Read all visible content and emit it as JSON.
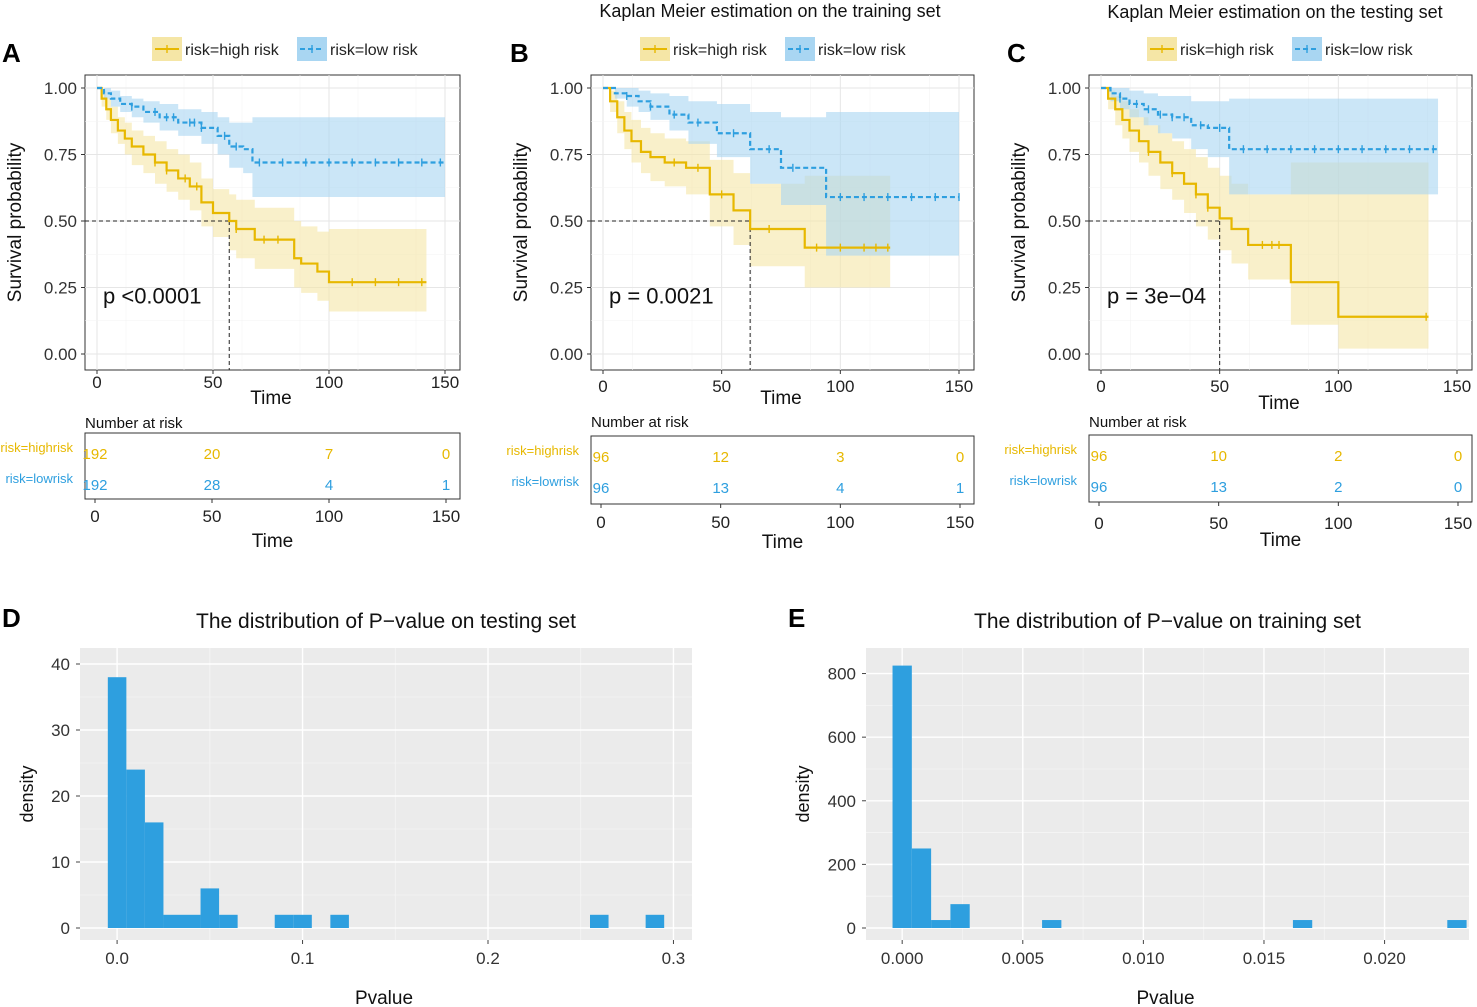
{
  "colors": {
    "high": "#E7B800",
    "low": "#2E9FDF",
    "high_fill": "#F5E6A6",
    "low_fill": "#A9D6F2",
    "grid": "#E6E6E6",
    "panel_bg": "#EBEBEB",
    "bar": "#2E9FDF"
  },
  "panels": {
    "A": {
      "letter": "A",
      "title": ""
    },
    "B": {
      "letter": "B",
      "title": "Kaplan Meier estimation on the training set"
    },
    "C": {
      "letter": "C",
      "title": "Kaplan Meier estimation on the testing set"
    },
    "D": {
      "letter": "D"
    },
    "E": {
      "letter": "E"
    }
  },
  "chart_data": [
    {
      "id": "A",
      "type": "line",
      "title": "",
      "legend": [
        "risk=high risk",
        "risk=low risk"
      ],
      "xlabel": "Time",
      "ylabel": "Survival probability",
      "xlim": [
        0,
        150
      ],
      "ylim": [
        0,
        1
      ],
      "xticks": [
        "0",
        "50",
        "100",
        "150"
      ],
      "yticks": [
        "0.00",
        "0.25",
        "0.50",
        "0.75",
        "1.00"
      ],
      "pvalue": "p <0.0001",
      "median": 57,
      "series": [
        {
          "name": "risk=high risk",
          "x": [
            0,
            2,
            4,
            6,
            9,
            12,
            15,
            20,
            25,
            30,
            35,
            40,
            45,
            50,
            57,
            60,
            68,
            85,
            88,
            95,
            100,
            142
          ],
          "y": [
            1.0,
            0.96,
            0.92,
            0.88,
            0.84,
            0.81,
            0.78,
            0.75,
            0.72,
            0.69,
            0.66,
            0.63,
            0.57,
            0.53,
            0.5,
            0.47,
            0.43,
            0.36,
            0.34,
            0.31,
            0.27,
            0.27
          ],
          "lower": [
            1.0,
            0.93,
            0.88,
            0.83,
            0.79,
            0.75,
            0.71,
            0.68,
            0.64,
            0.61,
            0.58,
            0.54,
            0.48,
            0.44,
            0.39,
            0.36,
            0.32,
            0.25,
            0.23,
            0.2,
            0.16,
            0.16
          ],
          "upper": [
            1.0,
            0.99,
            0.96,
            0.93,
            0.89,
            0.87,
            0.84,
            0.82,
            0.8,
            0.77,
            0.75,
            0.72,
            0.66,
            0.62,
            0.6,
            0.58,
            0.55,
            0.5,
            0.48,
            0.46,
            0.47,
            0.47
          ],
          "censor": [
            25,
            30,
            38,
            43,
            60,
            72,
            78,
            110,
            120,
            130,
            140
          ]
        },
        {
          "name": "risk=low risk",
          "x": [
            0,
            3,
            6,
            10,
            15,
            20,
            27,
            35,
            45,
            52,
            57,
            63,
            67,
            150
          ],
          "y": [
            1.0,
            0.98,
            0.96,
            0.94,
            0.93,
            0.91,
            0.89,
            0.87,
            0.85,
            0.82,
            0.78,
            0.77,
            0.72,
            0.72
          ],
          "lower": [
            1.0,
            0.96,
            0.93,
            0.91,
            0.89,
            0.87,
            0.84,
            0.82,
            0.79,
            0.75,
            0.7,
            0.68,
            0.59,
            0.59
          ],
          "upper": [
            1.0,
            1.0,
            0.99,
            0.97,
            0.96,
            0.95,
            0.94,
            0.92,
            0.91,
            0.89,
            0.87,
            0.87,
            0.89,
            0.89
          ],
          "censor": [
            15,
            25,
            30,
            33,
            40,
            42,
            45,
            55,
            60,
            70,
            80,
            90,
            100,
            110,
            120,
            130,
            140,
            148
          ]
        }
      ],
      "risk_table": {
        "title": "Number at risk",
        "rows": [
          {
            "label": "risk=highrisk",
            "values": [
              "192",
              "20",
              "7",
              "0"
            ]
          },
          {
            "label": "risk=lowrisk",
            "values": [
              "192",
              "28",
              "4",
              "1"
            ]
          }
        ]
      }
    },
    {
      "id": "B",
      "type": "line",
      "title": "Kaplan Meier estimation on the training set",
      "legend": [
        "risk=high risk",
        "risk=low risk"
      ],
      "xlabel": "Time",
      "ylabel": "Survival probability",
      "xlim": [
        0,
        150
      ],
      "ylim": [
        0,
        1
      ],
      "xticks": [
        "0",
        "50",
        "100",
        "150"
      ],
      "yticks": [
        "0.00",
        "0.25",
        "0.50",
        "0.75",
        "1.00"
      ],
      "pvalue": "p = 0.0021",
      "median": 62,
      "series": [
        {
          "name": "risk=high risk",
          "x": [
            0,
            3,
            6,
            9,
            12,
            16,
            20,
            26,
            35,
            45,
            55,
            62,
            85,
            121
          ],
          "y": [
            1.0,
            0.95,
            0.89,
            0.84,
            0.8,
            0.76,
            0.74,
            0.72,
            0.7,
            0.6,
            0.54,
            0.47,
            0.4,
            0.4
          ],
          "lower": [
            1.0,
            0.91,
            0.83,
            0.77,
            0.72,
            0.68,
            0.65,
            0.63,
            0.6,
            0.48,
            0.41,
            0.33,
            0.25,
            0.25
          ],
          "upper": [
            1.0,
            0.99,
            0.95,
            0.91,
            0.88,
            0.85,
            0.83,
            0.81,
            0.8,
            0.73,
            0.68,
            0.64,
            0.67,
            0.67
          ],
          "censor": [
            30,
            40,
            50,
            70,
            90,
            100,
            110,
            115,
            120
          ]
        },
        {
          "name": "risk=low risk",
          "x": [
            0,
            5,
            10,
            15,
            20,
            28,
            36,
            48,
            62,
            75,
            94,
            150
          ],
          "y": [
            1.0,
            0.98,
            0.97,
            0.95,
            0.93,
            0.9,
            0.87,
            0.83,
            0.77,
            0.7,
            0.59,
            0.59
          ],
          "lower": [
            1.0,
            0.96,
            0.93,
            0.91,
            0.88,
            0.84,
            0.79,
            0.74,
            0.64,
            0.56,
            0.37,
            0.37
          ],
          "upper": [
            1.0,
            1.0,
            1.0,
            0.99,
            0.98,
            0.97,
            0.95,
            0.94,
            0.91,
            0.89,
            0.91,
            0.91
          ],
          "censor": [
            10,
            20,
            30,
            40,
            55,
            70,
            80,
            100,
            110,
            120,
            130,
            140,
            150
          ]
        }
      ],
      "risk_table": {
        "title": "Number at risk",
        "rows": [
          {
            "label": "risk=highrisk",
            "values": [
              "96",
              "12",
              "3",
              "0"
            ]
          },
          {
            "label": "risk=lowrisk",
            "values": [
              "96",
              "13",
              "4",
              "1"
            ]
          }
        ]
      }
    },
    {
      "id": "C",
      "type": "line",
      "title": "Kaplan Meier estimation on the testing set",
      "legend": [
        "risk=high risk",
        "risk=low risk"
      ],
      "xlabel": "Time",
      "ylabel": "Survival probability",
      "xlim": [
        0,
        150
      ],
      "ylim": [
        0,
        1
      ],
      "xticks": [
        "0",
        "50",
        "100",
        "150"
      ],
      "yticks": [
        "0.00",
        "0.25",
        "0.50",
        "0.75",
        "1.00"
      ],
      "pvalue": "p = 3e−04",
      "median": 50,
      "series": [
        {
          "name": "risk=high risk",
          "x": [
            0,
            3,
            6,
            9,
            12,
            16,
            20,
            25,
            30,
            35,
            40,
            45,
            50,
            55,
            62,
            80,
            100,
            138
          ],
          "y": [
            1.0,
            0.96,
            0.92,
            0.88,
            0.84,
            0.8,
            0.76,
            0.72,
            0.68,
            0.64,
            0.6,
            0.55,
            0.51,
            0.47,
            0.41,
            0.27,
            0.14,
            0.14
          ],
          "lower": [
            1.0,
            0.92,
            0.86,
            0.81,
            0.76,
            0.72,
            0.67,
            0.62,
            0.58,
            0.53,
            0.48,
            0.43,
            0.39,
            0.34,
            0.28,
            0.11,
            0.02,
            0.02
          ],
          "upper": [
            1.0,
            0.99,
            0.97,
            0.95,
            0.92,
            0.89,
            0.86,
            0.83,
            0.8,
            0.77,
            0.74,
            0.7,
            0.67,
            0.64,
            0.6,
            0.72,
            0.72,
            0.72
          ],
          "censor": [
            20,
            30,
            40,
            45,
            68,
            72,
            75,
            137
          ]
        },
        {
          "name": "risk=low risk",
          "x": [
            0,
            4,
            8,
            12,
            18,
            24,
            30,
            38,
            45,
            54,
            142
          ],
          "y": [
            1.0,
            0.98,
            0.96,
            0.94,
            0.92,
            0.9,
            0.89,
            0.86,
            0.85,
            0.77,
            0.77
          ],
          "lower": [
            1.0,
            0.95,
            0.92,
            0.89,
            0.86,
            0.83,
            0.81,
            0.77,
            0.74,
            0.6,
            0.6
          ],
          "upper": [
            1.0,
            1.0,
            1.0,
            0.99,
            0.98,
            0.97,
            0.97,
            0.95,
            0.95,
            0.96,
            0.96
          ],
          "censor": [
            8,
            15,
            20,
            25,
            30,
            35,
            42,
            50,
            60,
            70,
            80,
            90,
            100,
            110,
            120,
            130,
            140
          ]
        }
      ],
      "risk_table": {
        "title": "Number at risk",
        "rows": [
          {
            "label": "risk=highrisk",
            "values": [
              "96",
              "10",
              "2",
              "0"
            ]
          },
          {
            "label": "risk=lowrisk",
            "values": [
              "96",
              "13",
              "2",
              "0"
            ]
          }
        ]
      }
    },
    {
      "id": "D",
      "type": "bar",
      "title": "The distribution of P−value on testing set",
      "xlabel": "Pvalue",
      "ylabel": "density",
      "xlim": [
        -0.02,
        0.31
      ],
      "ylim": [
        0,
        40
      ],
      "xticks": [
        "0.0",
        "0.1",
        "0.2",
        "0.3"
      ],
      "xtick_values": [
        0,
        0.1,
        0.2,
        0.3
      ],
      "yticks": [
        "0",
        "10",
        "20",
        "30",
        "40"
      ],
      "ytick_values": [
        0,
        10,
        20,
        30,
        40
      ],
      "bin_width": 0.01,
      "bin_starts": [
        -0.005,
        0.005,
        0.015,
        0.025,
        0.035,
        0.045,
        0.055,
        0.085,
        0.095,
        0.115,
        0.255,
        0.285
      ],
      "values": [
        38,
        24,
        16,
        2,
        2,
        6,
        2,
        2,
        2,
        2,
        2,
        2
      ]
    },
    {
      "id": "E",
      "type": "bar",
      "title": "The distribution of P−value on training set",
      "xlabel": "Pvalue",
      "ylabel": "density",
      "xlim": [
        -0.0015,
        0.0235
      ],
      "ylim": [
        0,
        830
      ],
      "xticks": [
        "0.000",
        "0.005",
        "0.010",
        "0.015",
        "0.020"
      ],
      "xtick_values": [
        0,
        0.005,
        0.01,
        0.015,
        0.02
      ],
      "yticks": [
        "0",
        "200",
        "400",
        "600",
        "800"
      ],
      "ytick_values": [
        0,
        200,
        400,
        600,
        800
      ],
      "bin_width": 0.0008,
      "bin_starts": [
        -0.0004,
        0.0004,
        0.0012,
        0.002,
        0.0058,
        0.0162,
        0.0226
      ],
      "values": [
        825,
        250,
        25,
        75,
        25,
        25,
        25
      ]
    }
  ]
}
